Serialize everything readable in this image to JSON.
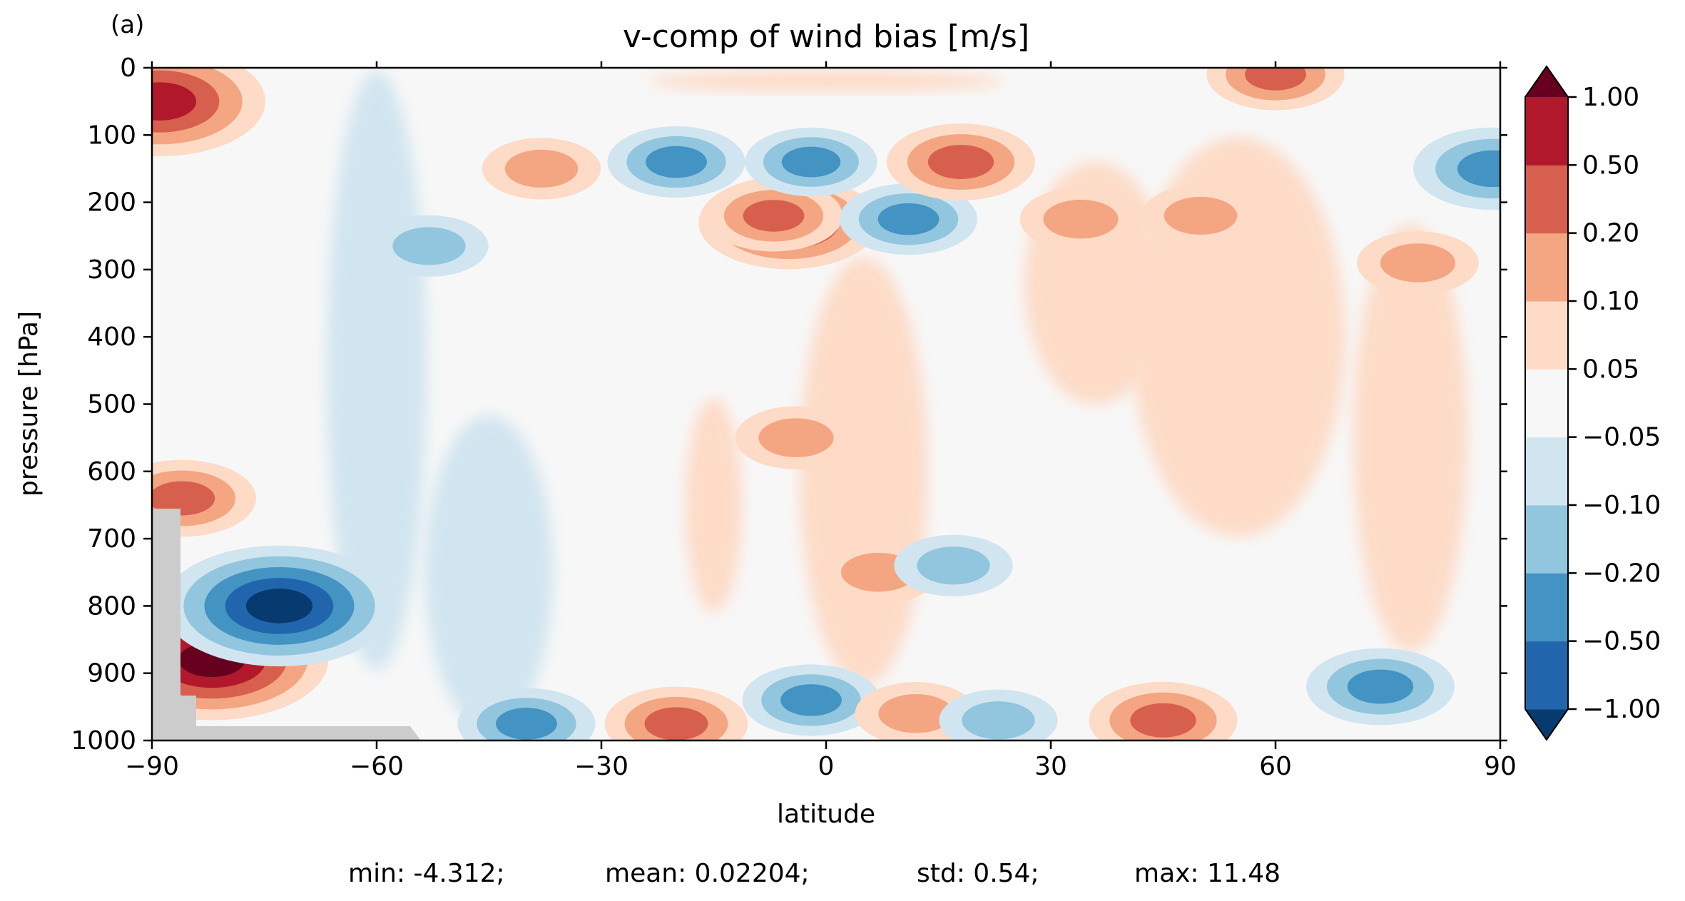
{
  "panel_label": "(a)",
  "chart_data": {
    "type": "heatmap",
    "title": "v-comp of wind bias [m/s]",
    "xlabel": "latitude",
    "ylabel": "pressure [hPa]",
    "xlim": [
      -90,
      90
    ],
    "ylim": [
      1000,
      0
    ],
    "x_ticks": [
      -90,
      -60,
      -30,
      0,
      30,
      60,
      90
    ],
    "x_tick_labels": [
      "−90",
      "−60",
      "−30",
      "0",
      "30",
      "60",
      "90"
    ],
    "y_ticks": [
      0,
      100,
      200,
      300,
      400,
      500,
      600,
      700,
      800,
      900,
      1000
    ],
    "y_tick_labels": [
      "0",
      "100",
      "200",
      "300",
      "400",
      "500",
      "600",
      "700",
      "800",
      "900",
      "1000"
    ],
    "colorbar": {
      "levels": [
        -1.0,
        -0.5,
        -0.2,
        -0.1,
        -0.05,
        0.05,
        0.1,
        0.2,
        0.5,
        1.0
      ],
      "tick_labels": [
        "−1.00",
        "−0.50",
        "−0.20",
        "−0.10",
        "−0.05",
        "0.05",
        "0.10",
        "0.20",
        "0.50",
        "1.00"
      ],
      "colors": [
        "#073a6e",
        "#2166ac",
        "#4393c3",
        "#92c5de",
        "#d1e5f0",
        "#f7f7f7",
        "#fddbc7",
        "#f4a582",
        "#d6604d",
        "#b2182b",
        "#67001f"
      ],
      "extend": "both"
    },
    "missing_color": "#cccccc",
    "features": [
      {
        "lat": -5,
        "p": 230,
        "value": 0.7
      },
      {
        "lat": -7,
        "p": 220,
        "value": 0.3
      },
      {
        "lat": -20,
        "p": 140,
        "value": -0.3
      },
      {
        "lat": -2,
        "p": 140,
        "value": -0.25
      },
      {
        "lat": 11,
        "p": 225,
        "value": -0.3
      },
      {
        "lat": 18,
        "p": 140,
        "value": 0.4
      },
      {
        "lat": -38,
        "p": 150,
        "value": 0.12
      },
      {
        "lat": 34,
        "p": 225,
        "value": 0.15
      },
      {
        "lat": 50,
        "p": 220,
        "value": 0.12
      },
      {
        "lat": 79,
        "p": 290,
        "value": 0.15
      },
      {
        "lat": -53,
        "p": 265,
        "value": -0.12
      },
      {
        "lat": -4,
        "p": 550,
        "value": 0.15
      },
      {
        "lat": 7,
        "p": 750,
        "value": 0.15
      },
      {
        "lat": 17,
        "p": 740,
        "value": -0.12
      },
      {
        "lat": -20,
        "p": 975,
        "value": 0.35
      },
      {
        "lat": -2,
        "p": 940,
        "value": -0.3
      },
      {
        "lat": 12,
        "p": 960,
        "value": 0.15
      },
      {
        "lat": 23,
        "p": 970,
        "value": -0.12
      },
      {
        "lat": 45,
        "p": 970,
        "value": 0.4
      },
      {
        "lat": -40,
        "p": 975,
        "value": -0.3
      },
      {
        "lat": 74,
        "p": 920,
        "value": -0.4
      },
      {
        "lat": -82,
        "p": 880,
        "value": 2.0
      },
      {
        "lat": -73,
        "p": 800,
        "value": -1.5
      },
      {
        "lat": -86,
        "p": 640,
        "value": 0.4
      },
      {
        "lat": -89,
        "p": 50,
        "value": 1.0
      },
      {
        "lat": 89,
        "p": 150,
        "value": -0.5
      },
      {
        "lat": 60,
        "p": 10,
        "value": 0.3
      }
    ],
    "annotations": [
      "min: -4.312;",
      "mean: 0.02204;",
      "std: 0.54;",
      "max: 11.48"
    ]
  }
}
